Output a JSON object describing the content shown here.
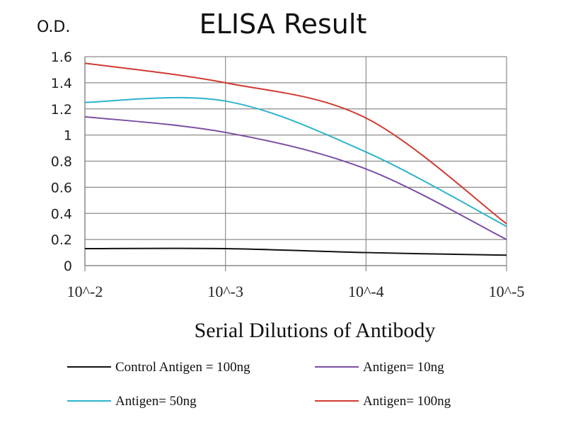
{
  "chart_data": {
    "type": "line",
    "title": "ELISA Result",
    "ylabel": "O.D.",
    "xlabel": "Serial  Dilutions  of Antibody",
    "categories": [
      "10^-2",
      "10^-3",
      "10^-4",
      "10^-5"
    ],
    "ylim": [
      0,
      1.6
    ],
    "yticks": [
      "0",
      "0.2",
      "0.4",
      "0.6",
      "0.8",
      "1",
      "1.2",
      "1.4",
      "1.6"
    ],
    "grid": true,
    "legend_position": "bottom",
    "series": [
      {
        "name": "Control Antigen = 100ng",
        "color": "#111111",
        "values": [
          0.13,
          0.13,
          0.1,
          0.08
        ]
      },
      {
        "name": "Antigen= 10ng",
        "color": "#7b4ea3",
        "values": [
          1.14,
          1.02,
          0.74,
          0.2
        ]
      },
      {
        "name": "Antigen= 50ng",
        "color": "#2eb3cc",
        "values": [
          1.25,
          1.26,
          0.87,
          0.3
        ]
      },
      {
        "name": "Antigen= 100ng",
        "color": "#d03a30",
        "values": [
          1.55,
          1.4,
          1.13,
          0.32
        ]
      }
    ]
  }
}
